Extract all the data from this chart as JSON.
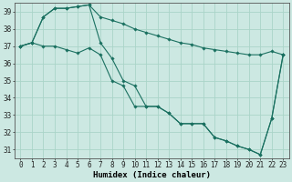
{
  "xlabel": "Humidex (Indice chaleur)",
  "background_color": "#cce8e2",
  "grid_color": "#aad4c8",
  "line_color": "#1a7060",
  "xlim": [
    -0.5,
    23.5
  ],
  "ylim": [
    30.5,
    39.5
  ],
  "xticks": [
    0,
    1,
    2,
    3,
    4,
    5,
    6,
    7,
    8,
    9,
    10,
    11,
    12,
    13,
    14,
    15,
    16,
    17,
    18,
    19,
    20,
    21,
    22,
    23
  ],
  "yticks": [
    31,
    32,
    33,
    34,
    35,
    36,
    37,
    38,
    39
  ],
  "series": [
    [
      37.0,
      37.2,
      38.7,
      39.2,
      39.2,
      39.3,
      39.4,
      38.7,
      38.5,
      38.3,
      38.0,
      37.8,
      37.6,
      37.4,
      37.2,
      37.1,
      36.9,
      36.8,
      36.7,
      36.6,
      36.5,
      36.5,
      36.7,
      36.5
    ],
    [
      37.0,
      37.2,
      38.7,
      39.2,
      39.2,
      39.3,
      39.4,
      37.2,
      36.3,
      35.0,
      34.7,
      33.5,
      33.5,
      33.1,
      32.5,
      32.5,
      32.5,
      31.7,
      31.5,
      31.2,
      31.0,
      30.7,
      32.8,
      36.5
    ],
    [
      37.0,
      37.2,
      37.0,
      37.0,
      36.8,
      36.6,
      36.9,
      36.5,
      35.0,
      34.7,
      33.5,
      33.5,
      33.5,
      33.1,
      32.5,
      32.5,
      32.5,
      31.7,
      31.5,
      31.2,
      31.0,
      30.7,
      32.8,
      36.5
    ]
  ],
  "tick_fontsize": 5.5,
  "xlabel_fontsize": 6.5
}
